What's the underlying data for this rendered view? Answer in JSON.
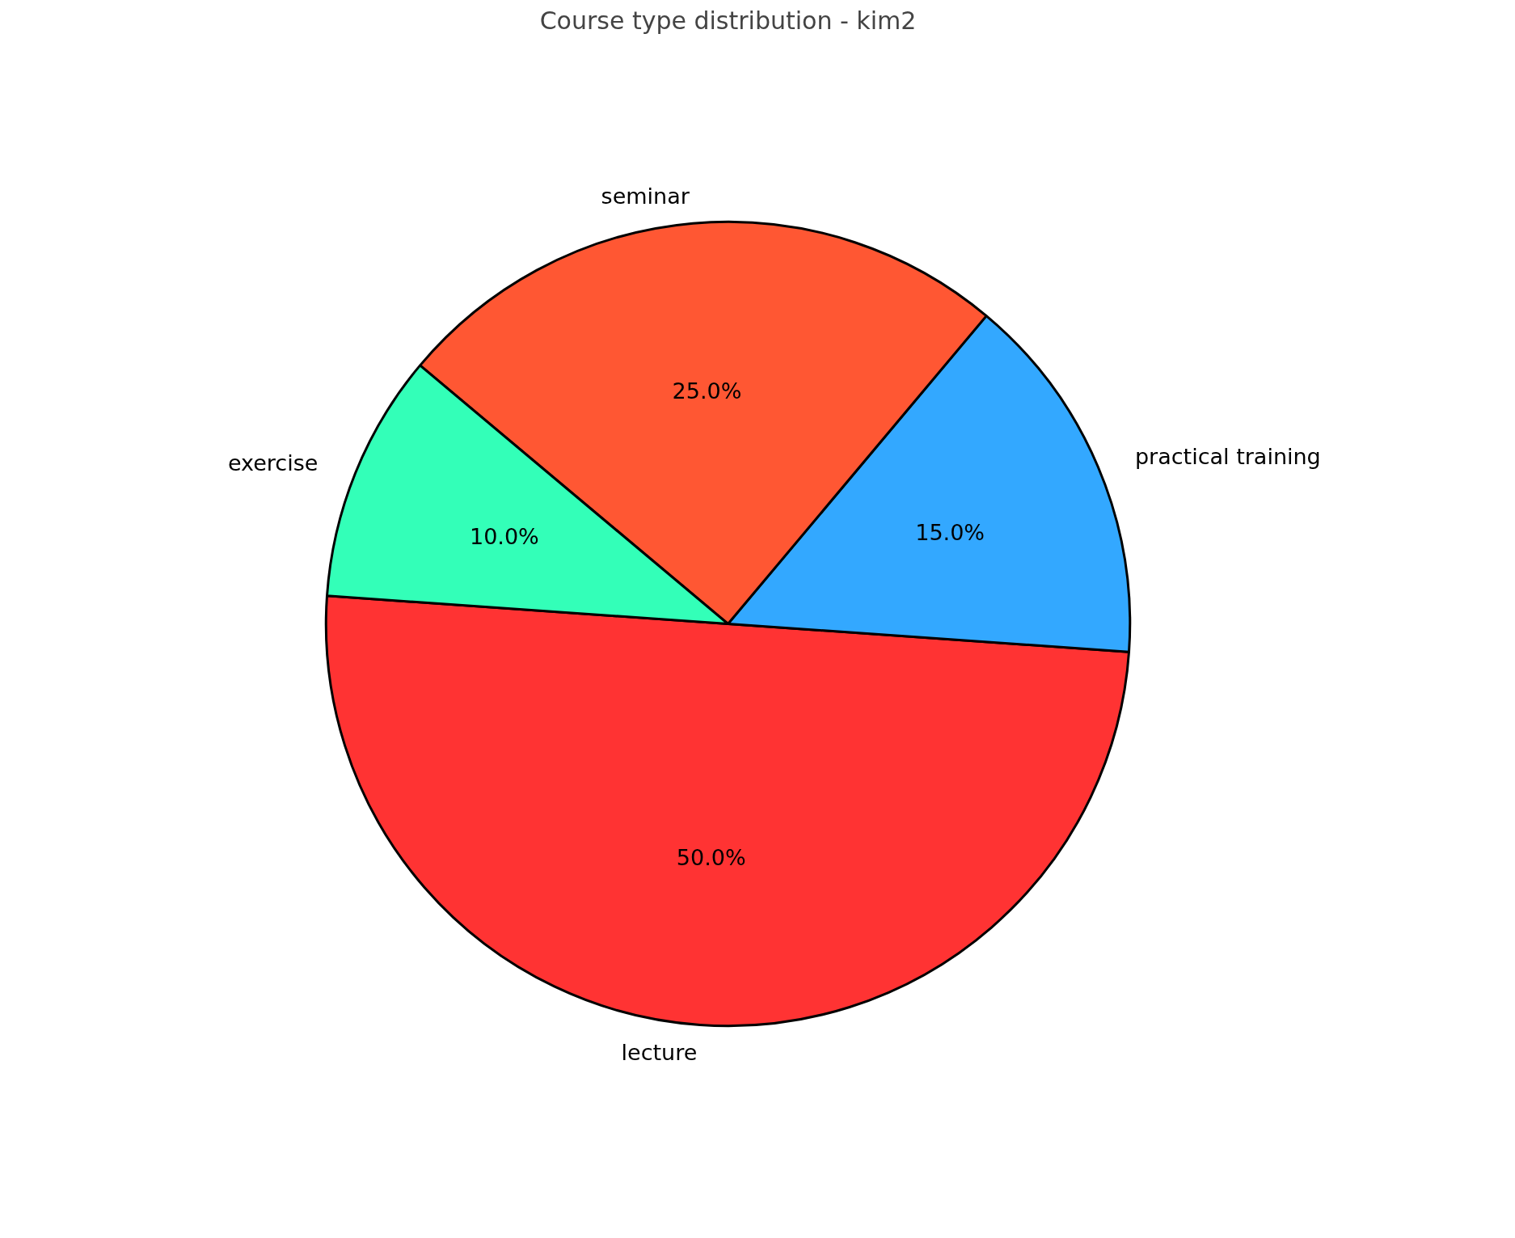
{
  "chart_data": {
    "type": "pie",
    "title": "Course type distribution - kim2",
    "categories": [
      "lecture",
      "practical training",
      "seminar",
      "exercise"
    ],
    "values": [
      50,
      15,
      25,
      10
    ],
    "colors": [
      "#ff3333",
      "#33a8ff",
      "#ff5733",
      "#33ffb8"
    ],
    "value_labels": [
      "50.0%",
      "15.0%",
      "25.0%",
      "10.0%"
    ]
  }
}
